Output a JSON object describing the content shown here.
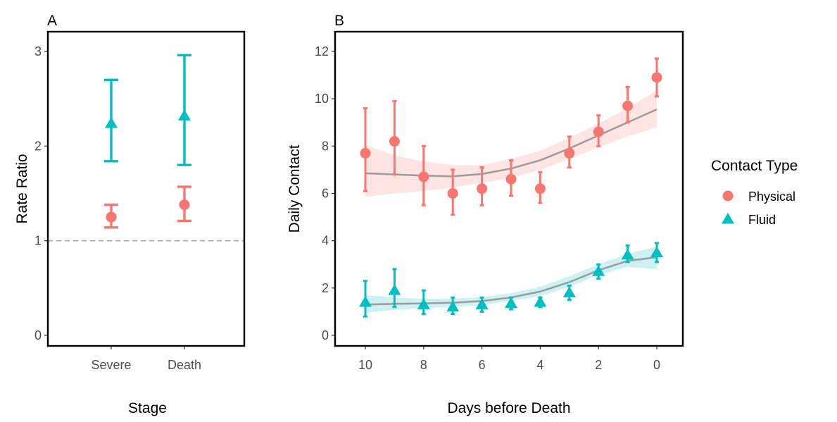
{
  "colors": {
    "physical": "#F8766D",
    "fluid": "#00BFC4",
    "trend": "#9E9E9E",
    "refline": "#A6A6A6",
    "physical_band": "#F8766D",
    "fluid_band": "#00BFC4"
  },
  "legend": {
    "title": "Contact Type",
    "items": [
      {
        "label": "Physical",
        "shape": "circle",
        "color": "#F8766D"
      },
      {
        "label": "Fluid",
        "shape": "triangle",
        "color": "#00BFC4"
      }
    ],
    "placement": "right"
  },
  "chart_data": [
    {
      "panel": "A",
      "type": "scatter",
      "xlabel": "Stage",
      "ylabel": "Rate Ratio",
      "categories": [
        "Severe",
        "Death"
      ],
      "ylim": [
        0,
        3
      ],
      "yticks": [
        0,
        1,
        2,
        3
      ],
      "reference_line": 1,
      "grid": false,
      "series": [
        {
          "name": "Physical",
          "values": [
            1.25,
            1.38
          ],
          "lower": [
            1.14,
            1.21
          ],
          "upper": [
            1.38,
            1.57
          ]
        },
        {
          "name": "Fluid",
          "values": [
            2.24,
            2.32
          ],
          "lower": [
            1.84,
            1.8
          ],
          "upper": [
            2.7,
            2.96
          ]
        }
      ]
    },
    {
      "panel": "B",
      "type": "scatter",
      "xlabel": "Days before Death",
      "ylabel": "Daily Contact",
      "x": [
        10,
        9,
        8,
        7,
        6,
        5,
        4,
        3,
        2,
        1,
        0
      ],
      "xticks": [
        10,
        8,
        6,
        4,
        2,
        0
      ],
      "xlim": [
        10.7,
        -0.7
      ],
      "ylim": [
        0,
        12
      ],
      "yticks": [
        0,
        2,
        4,
        6,
        8,
        10,
        12
      ],
      "grid": false,
      "series": [
        {
          "name": "Physical",
          "values": [
            7.7,
            8.2,
            6.7,
            6.0,
            6.2,
            6.6,
            6.2,
            7.7,
            8.6,
            9.7,
            10.9
          ],
          "lower": [
            6.1,
            6.8,
            5.5,
            5.1,
            5.5,
            5.9,
            5.6,
            7.1,
            8.0,
            9.0,
            10.1
          ],
          "upper": [
            9.6,
            9.9,
            8.0,
            7.0,
            7.1,
            7.4,
            6.9,
            8.4,
            9.3,
            10.5,
            11.7
          ],
          "trend": [
            6.85,
            6.8,
            6.75,
            6.72,
            6.82,
            7.05,
            7.4,
            7.9,
            8.45,
            9.0,
            9.55
          ],
          "trend_lower": [
            5.85,
            6.0,
            6.1,
            6.25,
            6.45,
            6.65,
            7.0,
            7.45,
            7.95,
            8.4,
            8.8
          ],
          "trend_upper": [
            8.05,
            7.6,
            7.35,
            7.2,
            7.2,
            7.45,
            7.8,
            8.35,
            8.95,
            9.6,
            10.35
          ]
        },
        {
          "name": "Fluid",
          "values": [
            1.4,
            1.9,
            1.3,
            1.2,
            1.3,
            1.35,
            1.4,
            1.8,
            2.7,
            3.4,
            3.5
          ],
          "lower": [
            0.8,
            1.2,
            0.9,
            0.9,
            1.0,
            1.1,
            1.2,
            1.5,
            2.4,
            3.1,
            3.1
          ],
          "upper": [
            2.3,
            2.8,
            1.9,
            1.6,
            1.6,
            1.6,
            1.6,
            2.1,
            3.0,
            3.8,
            3.9
          ],
          "trend": [
            1.3,
            1.33,
            1.35,
            1.38,
            1.45,
            1.6,
            1.85,
            2.25,
            2.75,
            3.15,
            3.3
          ],
          "trend_lower": [
            0.95,
            1.08,
            1.15,
            1.2,
            1.28,
            1.45,
            1.65,
            2.05,
            2.55,
            2.9,
            2.8
          ],
          "trend_upper": [
            1.7,
            1.6,
            1.55,
            1.55,
            1.62,
            1.78,
            2.05,
            2.5,
            3.0,
            3.45,
            3.75
          ]
        }
      ]
    }
  ]
}
